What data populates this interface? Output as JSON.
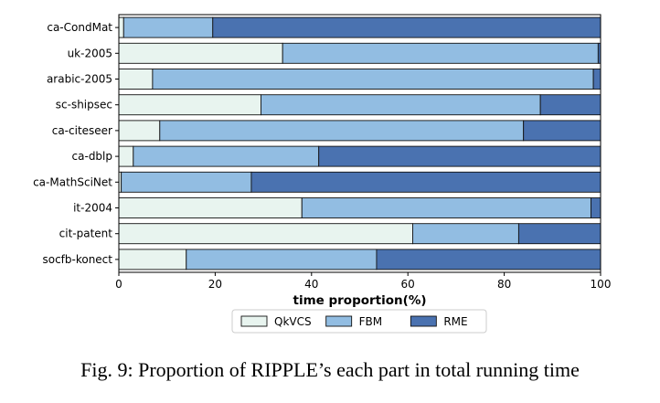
{
  "chart_data": {
    "type": "bar",
    "orientation": "horizontal",
    "stacked": true,
    "categories": [
      "ca-CondMat",
      "uk-2005",
      "arabic-2005",
      "sc-shipsec",
      "ca-citeseer",
      "ca-dblp",
      "ca-MathSciNet",
      "it-2004",
      "cit-patent",
      "socfb-konect"
    ],
    "series": [
      {
        "name": "QkVCS",
        "color": "#e8f4ef",
        "values": [
          1.0,
          34.0,
          7.0,
          29.5,
          8.5,
          3.0,
          0.5,
          38.0,
          61.0,
          14.0
        ]
      },
      {
        "name": "FBM",
        "color": "#92bde2",
        "values": [
          18.5,
          65.5,
          91.5,
          58.0,
          75.5,
          38.5,
          27.0,
          60.0,
          22.0,
          39.5
        ]
      },
      {
        "name": "RME",
        "color": "#4a72b0",
        "values": [
          80.5,
          0.5,
          1.5,
          12.5,
          16.0,
          58.5,
          72.5,
          2.0,
          17.0,
          46.5
        ]
      }
    ],
    "xlabel": "time proportion(%)",
    "xlim": [
      0,
      100
    ],
    "xticks": [
      "0",
      "20",
      "40",
      "60",
      "80",
      "100"
    ],
    "legend_position": "bottom",
    "grid": false
  },
  "caption": "Fig. 9: Proportion of RIPPLE’s each part in total running time"
}
